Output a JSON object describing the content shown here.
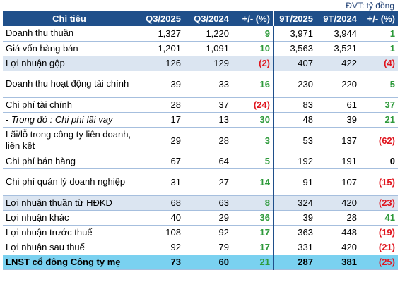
{
  "unit_label": "ĐVT: tỷ đồng",
  "headers": {
    "item": "Chỉ tiêu",
    "q3_2025": "Q3/2025",
    "q3_2024": "Q3/2024",
    "q_change": "+/- (%)",
    "ytd_2025": "9T/2025",
    "ytd_2024": "9T/2024",
    "ytd_change": "+/- (%)"
  },
  "rows": [
    {
      "label": "Doanh thu thuần",
      "q3_2025": "1,327",
      "q3_2024": "1,220",
      "q_change": "9",
      "ytd_2025": "3,971",
      "ytd_2024": "3,944",
      "ytd_change": "1"
    },
    {
      "label": "Giá vốn hàng bán",
      "q3_2025": "1,201",
      "q3_2024": "1,091",
      "q_change": "10",
      "ytd_2025": "3,563",
      "ytd_2024": "3,521",
      "ytd_change": "1"
    },
    {
      "label": "Lợi nhuận gộp",
      "q3_2025": "126",
      "q3_2024": "129",
      "q_change": "(2)",
      "ytd_2025": "407",
      "ytd_2024": "422",
      "ytd_change": "(4)"
    },
    {
      "label": "Doanh thu hoạt động tài chính",
      "q3_2025": "39",
      "q3_2024": "33",
      "q_change": "16",
      "ytd_2025": "230",
      "ytd_2024": "220",
      "ytd_change": "5"
    },
    {
      "label": "Chi phí tài chính",
      "q3_2025": "28",
      "q3_2024": "37",
      "q_change": "(24)",
      "ytd_2025": "83",
      "ytd_2024": "61",
      "ytd_change": "37"
    },
    {
      "label": " - Trong đó : Chi phí lãi vay",
      "q3_2025": "17",
      "q3_2024": "13",
      "q_change": "30",
      "ytd_2025": "48",
      "ytd_2024": "39",
      "ytd_change": "21"
    },
    {
      "label": "Lãi/lỗ trong công ty liên doanh, liên kết",
      "q3_2025": "29",
      "q3_2024": "28",
      "q_change": "3",
      "ytd_2025": "53",
      "ytd_2024": "137",
      "ytd_change": "(62)"
    },
    {
      "label": "Chi phí bán hàng",
      "q3_2025": "67",
      "q3_2024": "64",
      "q_change": "5",
      "ytd_2025": "192",
      "ytd_2024": "191",
      "ytd_change": "0"
    },
    {
      "label": "Chi phí quản lý doanh nghiệp",
      "q3_2025": "31",
      "q3_2024": "27",
      "q_change": "14",
      "ytd_2025": "91",
      "ytd_2024": "107",
      "ytd_change": "(15)"
    },
    {
      "label": "Lợi nhuận thuần từ HĐKD",
      "q3_2025": "68",
      "q3_2024": "63",
      "q_change": "8",
      "ytd_2025": "324",
      "ytd_2024": "420",
      "ytd_change": "(23)"
    },
    {
      "label": "Lợi nhuận khác",
      "q3_2025": "40",
      "q3_2024": "29",
      "q_change": "36",
      "ytd_2025": "39",
      "ytd_2024": "28",
      "ytd_change": "41"
    },
    {
      "label": "Lợi nhuận trước thuế",
      "q3_2025": "108",
      "q3_2024": "92",
      "q_change": "17",
      "ytd_2025": "363",
      "ytd_2024": "448",
      "ytd_change": "(19)"
    },
    {
      "label": "Lợi nhuận sau thuế",
      "q3_2025": "92",
      "q3_2024": "79",
      "q_change": "17",
      "ytd_2025": "331",
      "ytd_2024": "420",
      "ytd_change": "(21)"
    },
    {
      "label": "LNST cổ đông Công ty mẹ",
      "q3_2025": "73",
      "q3_2024": "60",
      "q_change": "21",
      "ytd_2025": "287",
      "ytd_2024": "381",
      "ytd_change": "(25)"
    }
  ],
  "colors": {
    "header_bg": "#1f4f8a",
    "highlight_bg": "#dbe5f1",
    "total_bg": "#7ad1f0",
    "positive": "#2e9a3b",
    "negative": "#e0161f"
  }
}
